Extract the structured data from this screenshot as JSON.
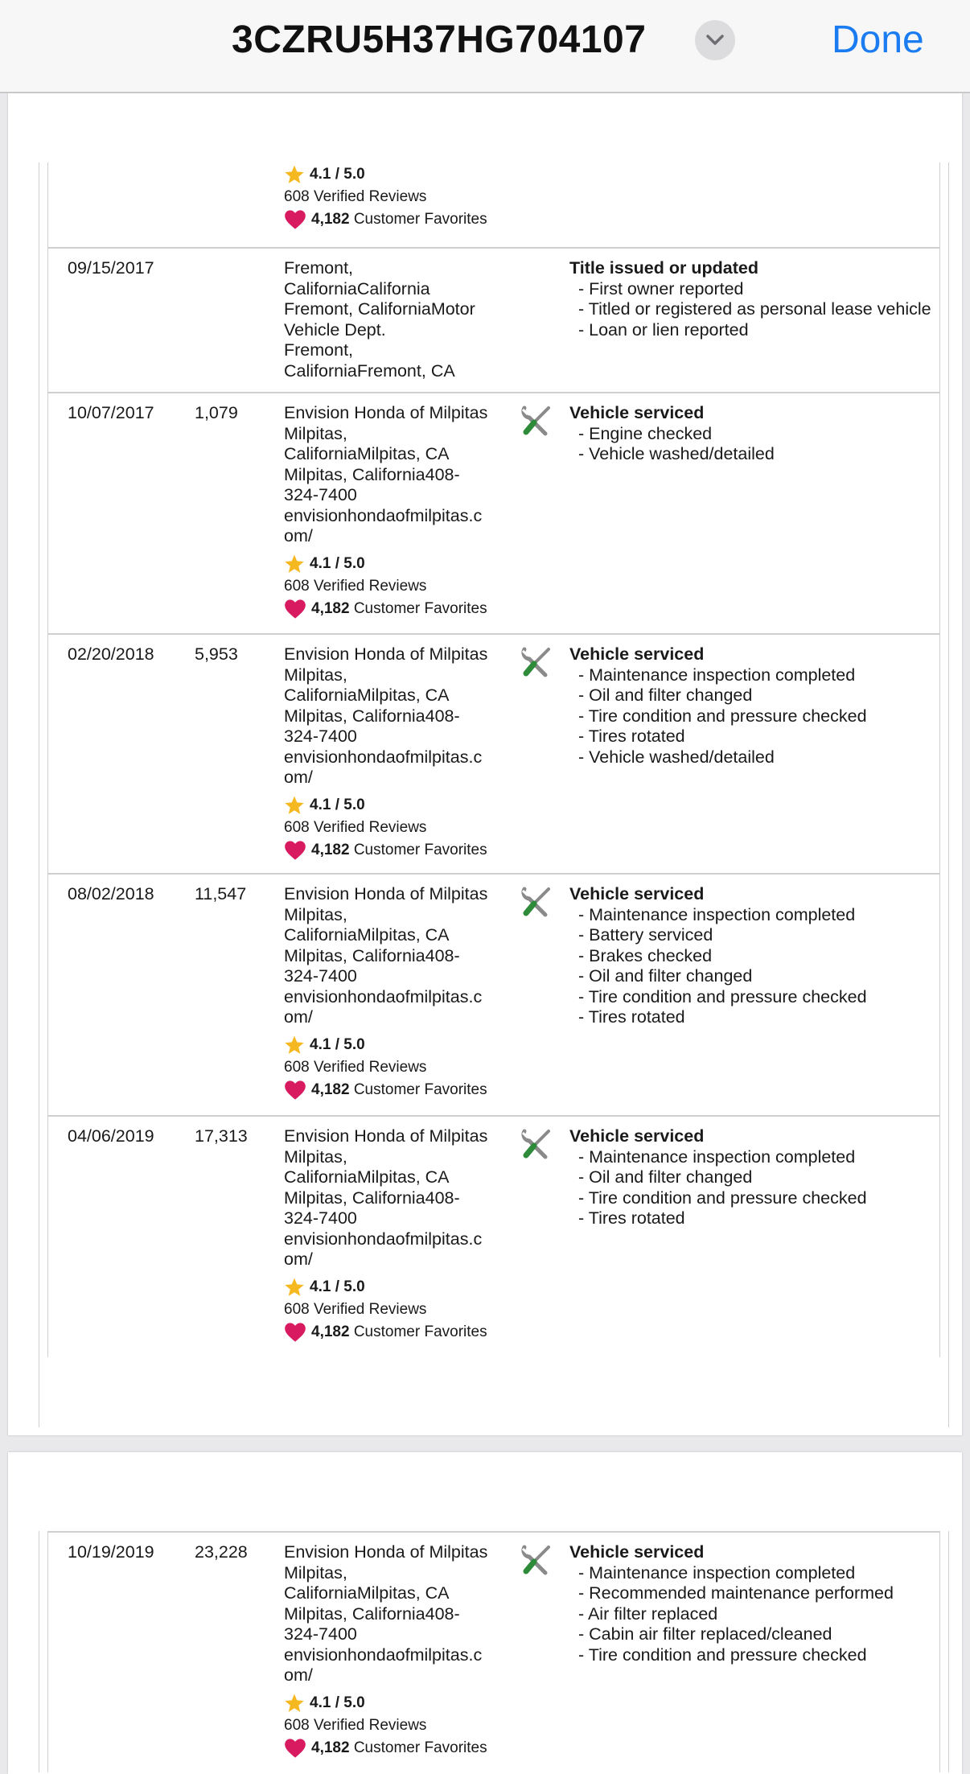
{
  "header": {
    "title": "3CZRU5H37HG704107",
    "menu_icon": "chevron-down-icon",
    "done_label": "Done"
  },
  "colors": {
    "accent": "#1a7cf0",
    "star": "#f6b820",
    "heart": "#d81b60",
    "tool_handle": "#2e8b3a"
  },
  "rating_block": {
    "rating": "4.1 / 5.0",
    "reviews": "608 Verified Reviews",
    "favorites_count": "4,182",
    "favorites_label": "Customer Favorites"
  },
  "rows": [
    {
      "date": "09/15/2017",
      "odometer": "",
      "source": [
        "Fremont,",
        "CaliforniaCalifornia",
        "Fremont, CaliforniaMotor",
        "Vehicle Dept.",
        "Fremont,",
        "CaliforniaFremont, CA"
      ],
      "heading": "Title issued or updated",
      "items": [
        "- First owner reported",
        "- Titled or registered as personal lease vehicle",
        "- Loan or lien reported"
      ]
    },
    {
      "date": "10/07/2017",
      "odometer": "1,079",
      "source": [
        "Envision Honda of Milpitas",
        "Milpitas,",
        "CaliforniaMilpitas, CA",
        "Milpitas, California408-",
        "324-7400",
        "envisionhondaofmilpitas.c",
        "om/"
      ],
      "heading": "Vehicle serviced",
      "items": [
        "- Engine checked",
        "- Vehicle washed/detailed"
      ]
    },
    {
      "date": "02/20/2018",
      "odometer": "5,953",
      "source": [
        "Envision Honda of Milpitas",
        "Milpitas,",
        "CaliforniaMilpitas, CA",
        "Milpitas, California408-",
        "324-7400",
        "envisionhondaofmilpitas.c",
        "om/"
      ],
      "heading": "Vehicle serviced",
      "items": [
        "- Maintenance inspection completed",
        "- Oil and filter changed",
        "- Tire condition and pressure checked",
        "- Tires rotated",
        "- Vehicle washed/detailed"
      ]
    },
    {
      "date": "08/02/2018",
      "odometer": "11,547",
      "source": [
        "Envision Honda of Milpitas",
        "Milpitas,",
        "CaliforniaMilpitas, CA",
        "Milpitas, California408-",
        "324-7400",
        "envisionhondaofmilpitas.c",
        "om/"
      ],
      "heading": "Vehicle serviced",
      "items": [
        "- Maintenance inspection completed",
        "- Battery serviced",
        "- Brakes checked",
        "- Oil and filter changed",
        "- Tire condition and pressure checked",
        "- Tires rotated"
      ]
    },
    {
      "date": "04/06/2019",
      "odometer": "17,313",
      "source": [
        "Envision Honda of Milpitas",
        "Milpitas,",
        "CaliforniaMilpitas, CA",
        "Milpitas, California408-",
        "324-7400",
        "envisionhondaofmilpitas.c",
        "om/"
      ],
      "heading": "Vehicle serviced",
      "items": [
        "- Maintenance inspection completed",
        "- Oil and filter changed",
        "- Tire condition and pressure checked",
        "- Tires rotated"
      ]
    },
    {
      "date": "10/19/2019",
      "odometer": "23,228",
      "source": [
        "Envision Honda of Milpitas",
        "Milpitas,",
        "CaliforniaMilpitas, CA",
        "Milpitas, California408-",
        "324-7400",
        "envisionhondaofmilpitas.c",
        "om/"
      ],
      "heading": "Vehicle serviced",
      "items": [
        "- Maintenance inspection completed",
        "- Recommended maintenance performed",
        "- Air filter replaced",
        "- Cabin air filter replaced/cleaned",
        "- Tire condition and pressure checked"
      ]
    }
  ]
}
